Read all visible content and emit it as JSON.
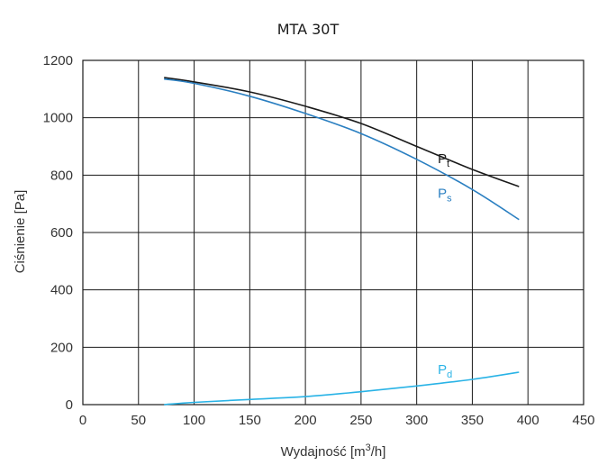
{
  "chart_data": {
    "type": "line",
    "title": "MTA 30T",
    "xlabel_prefix": "Wydajność [m",
    "xlabel_sup": "3",
    "xlabel_suffix": "/h]",
    "ylabel": "Ciśnienie [Pa]",
    "xlim": [
      0,
      450
    ],
    "ylim": [
      0,
      1200
    ],
    "xticks": [
      0,
      50,
      100,
      150,
      200,
      250,
      300,
      350,
      400,
      450
    ],
    "yticks": [
      0,
      200,
      400,
      600,
      800,
      1000,
      1200
    ],
    "grid": true,
    "series": [
      {
        "name": "Pt",
        "label_main": "P",
        "label_sub": "t",
        "color": "#1a1a1a",
        "x": [
          73,
          100,
          150,
          200,
          250,
          300,
          350,
          392
        ],
        "y": [
          1140,
          1125,
          1090,
          1040,
          980,
          900,
          820,
          760
        ],
        "label_at": [
          323,
          860
        ]
      },
      {
        "name": "Ps",
        "label_main": "P",
        "label_sub": "s",
        "color": "#2a7fc1",
        "x": [
          73,
          100,
          150,
          200,
          250,
          300,
          350,
          392
        ],
        "y": [
          1135,
          1120,
          1075,
          1015,
          945,
          855,
          750,
          645
        ],
        "label_at": [
          323,
          740
        ]
      },
      {
        "name": "Pd",
        "label_main": "P",
        "label_sub": "d",
        "color": "#29b3e6",
        "x": [
          73,
          100,
          150,
          200,
          250,
          300,
          350,
          392
        ],
        "y": [
          0,
          8,
          18,
          28,
          45,
          65,
          88,
          113
        ],
        "label_at": [
          323,
          125
        ]
      }
    ]
  }
}
